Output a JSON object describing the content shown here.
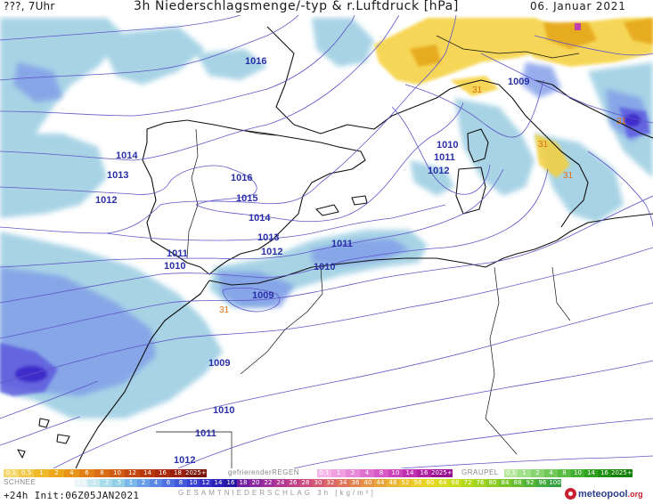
{
  "header": {
    "left": "???, 7Uhr",
    "title": "3h Niederschlagsmenge/-typ & r.Luftdruck [hPa]",
    "date": "06. Januar 2021"
  },
  "map": {
    "colors": {
      "sea": "#ffffff",
      "coast": "#111111",
      "isobar": "#5f56c8",
      "precip_light": "#9ecfe3",
      "precip_mid": "#7f9be8",
      "precip_heavy": "#5b56de",
      "precip_core": "#3a28c8",
      "freezing": "#f5d03a",
      "freezing_dark": "#e4a417",
      "graupel_magenta": "#c040b0"
    },
    "isobar_labels": [
      "1016",
      "1014",
      "1013",
      "1012",
      "1016",
      "1015",
      "1014",
      "1013",
      "1012",
      "1011",
      "1010",
      "1009",
      "1011",
      "1010",
      "1009",
      "1010",
      "1011",
      "1012",
      "1010",
      "1011",
      "1012",
      "1009"
    ],
    "convective_labels": [
      "31",
      "31",
      "31",
      "31",
      "31"
    ]
  },
  "legend": {
    "snow": {
      "title": "SCHNEE",
      "values": [
        "0.1",
        "0.5",
        "1",
        "2",
        "4",
        "6",
        "8",
        "10",
        "12",
        "14",
        "16",
        "18",
        "2025+"
      ],
      "colors": [
        "#f6d870",
        "#f2c94c",
        "#f0b92c",
        "#eda71a",
        "#e8941a",
        "#e28017",
        "#d96c14",
        "#cf5a12",
        "#c44910",
        "#b8390e",
        "#aa2b0c",
        "#9a1f0a",
        "#7a1508"
      ]
    },
    "freezing_rain": {
      "title": "gefrierenderREGEN",
      "values": [
        "0.1",
        "1",
        "2",
        "4",
        "8",
        "10",
        "14",
        "16",
        "2025+"
      ],
      "colors": [
        "#f5b8e8",
        "#f0a0e0",
        "#e888d8",
        "#e070d0",
        "#d85ac8",
        "#cc44bc",
        "#c030b0",
        "#b020a0",
        "#981090"
      ]
    },
    "graupel": {
      "title": "GRAUPEL",
      "values": [
        "0.1",
        "1",
        "2",
        "4",
        "8",
        "10",
        "14",
        "16",
        "2025+"
      ],
      "colors": [
        "#b8e8a0",
        "#a0e088",
        "#88d470",
        "#70c858",
        "#58bc40",
        "#40b030",
        "#30a020",
        "#209010",
        "#108000"
      ]
    },
    "total": {
      "title": "GESAMTNIEDERSCHLAG 3h [kg/m²]",
      "values": [
        "0.1",
        ".1",
        ".2",
        ".5",
        "1",
        "2",
        "4",
        "6",
        "8",
        "10",
        "12",
        "14",
        "16",
        "18",
        "20",
        "22",
        "24",
        "26",
        "28",
        "30",
        "32",
        "34",
        "36",
        "40",
        "44",
        "48",
        "52",
        "56",
        "60",
        "64",
        "68",
        "72",
        "76",
        "80",
        "84",
        "88",
        "92",
        "96",
        "100"
      ],
      "colors": [
        "#e8f4f8",
        "#c8e8f0",
        "#a8dcea",
        "#90cfe4",
        "#7ab6e8",
        "#6a9ee8",
        "#5a86e6",
        "#4e6ee2",
        "#4458dc",
        "#3a42d4",
        "#3230c8",
        "#2a20b8",
        "#2418a4",
        "#7020a0",
        "#8a28a0",
        "#a0309c",
        "#b23894",
        "#c0408a",
        "#cc4c80",
        "#d45874",
        "#da6668",
        "#de745c",
        "#e28450",
        "#e69446",
        "#e8a43c",
        "#eab434",
        "#ecc22c",
        "#eccf26",
        "#e6d820",
        "#d8dc1e",
        "#c8dc1c",
        "#b4d81c",
        "#a0d420",
        "#8ccc24",
        "#78c42a",
        "#64bc30",
        "#52b436",
        "#42aa3c",
        "#34a042"
      ]
    },
    "init": "+24h  Init:06Z05JAN2021",
    "logo": "meteopool",
    "logo_tld": ".org"
  }
}
